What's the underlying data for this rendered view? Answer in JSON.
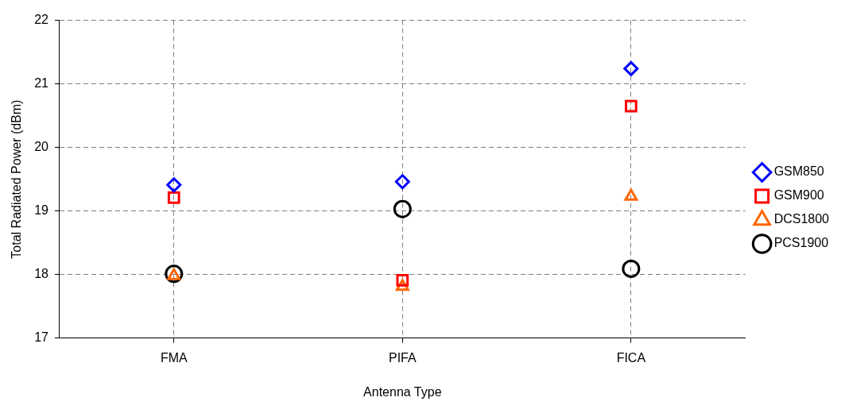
{
  "chart_data": {
    "type": "scatter",
    "xlabel": "Antenna Type",
    "ylabel": "Total Radiated Power (dBm)",
    "categories": [
      "FMA",
      "PIFA",
      "FICA"
    ],
    "series": [
      {
        "name": "GSM850",
        "color": "#0000ff",
        "marker": "diamond",
        "values": [
          19.41,
          19.46,
          21.24
        ]
      },
      {
        "name": "GSM900",
        "color": "#ff0000",
        "marker": "square",
        "values": [
          19.21,
          17.91,
          20.65
        ]
      },
      {
        "name": "DCS1800",
        "color": "#ff6600",
        "marker": "triangle",
        "values": [
          17.98,
          17.81,
          19.23
        ]
      },
      {
        "name": "PCS1900",
        "color": "#000000",
        "marker": "circle",
        "values": [
          18.01,
          19.03,
          18.09
        ]
      }
    ],
    "ylim": [
      17,
      22
    ],
    "yticks": [
      17,
      18,
      19,
      20,
      21,
      22
    ],
    "grid": true,
    "legend": "right"
  }
}
